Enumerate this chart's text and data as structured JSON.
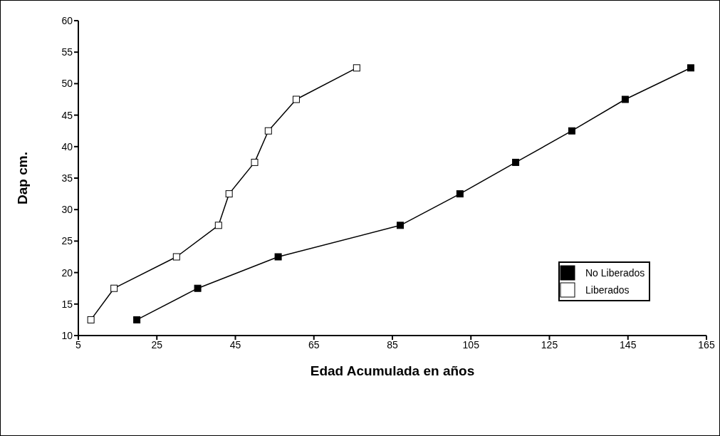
{
  "chart_data": {
    "type": "line",
    "xlabel": "Edad Acumulada en años",
    "ylabel": "Dap cm.",
    "xlim": [
      5,
      165
    ],
    "xticks": [
      5,
      25,
      45,
      65,
      85,
      105,
      125,
      145,
      165
    ],
    "ylim": [
      10,
      60
    ],
    "yticks": [
      10,
      15,
      20,
      25,
      30,
      35,
      40,
      45,
      50,
      55,
      60
    ],
    "grid": false,
    "legend": "right",
    "marker": "square",
    "line_style": "solid",
    "series": [
      {
        "name": "No Liberados",
        "color": "#000000",
        "x": [
          19.9,
          35.4,
          55.9,
          87.0,
          102.2,
          116.4,
          130.7,
          144.3,
          161.0
        ],
        "values": [
          12.5,
          17.5,
          22.5,
          27.5,
          32.5,
          37.5,
          42.5,
          47.5,
          52.5
        ]
      },
      {
        "name": "Liberados",
        "color": "#ffffff",
        "x": [
          8.2,
          14.1,
          30.0,
          40.7,
          43.4,
          49.9,
          53.4,
          60.5,
          75.9
        ],
        "values": [
          12.5,
          17.5,
          22.5,
          27.5,
          32.5,
          37.5,
          42.5,
          47.5,
          52.5
        ]
      }
    ]
  }
}
